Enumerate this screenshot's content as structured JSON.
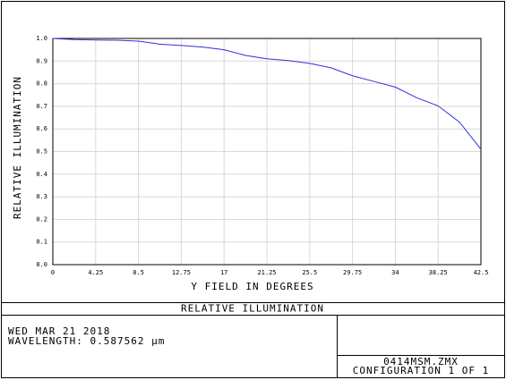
{
  "chart_data": {
    "type": "line",
    "title": "RELATIVE ILLUMINATION",
    "xlabel": "Y FIELD IN DEGREES",
    "ylabel": "RELATIVE ILLUMINATION",
    "x": [
      0,
      2.125,
      4.25,
      6.375,
      8.5,
      10.625,
      12.75,
      14.875,
      17,
      19.125,
      21.25,
      23.375,
      25.5,
      27.625,
      29.75,
      31.875,
      34,
      36.125,
      38.25,
      40.375,
      42.5
    ],
    "series": [
      {
        "name": "RELATIVE ILLUMINATION",
        "color": "#3030e0",
        "values": [
          1.0,
          0.995,
          0.993,
          0.992,
          0.988,
          0.975,
          0.969,
          0.962,
          0.95,
          0.925,
          0.91,
          0.902,
          0.89,
          0.87,
          0.835,
          0.81,
          0.785,
          0.738,
          0.702,
          0.63,
          0.51
        ]
      }
    ],
    "xlim": [
      0,
      42.5
    ],
    "ylim": [
      0,
      1
    ],
    "xticks": [
      0,
      4.25,
      8.5,
      12.75,
      17,
      21.25,
      25.5,
      29.75,
      34,
      38.25,
      42.5
    ],
    "yticks": [
      {
        "value": 0,
        "label": "0.0"
      },
      0.1,
      0.2,
      0.3,
      0.4,
      0.5,
      0.6,
      0.7,
      0.8,
      0.9,
      {
        "value": 1,
        "label": "1.0"
      }
    ],
    "grid": true
  },
  "footer": {
    "date": "WED MAR 21 2018",
    "wavelength": "WAVELENGTH: 0.587562 µm",
    "file": "0414MSM.ZMX",
    "configuration": "CONFIGURATION 1 OF 1"
  }
}
